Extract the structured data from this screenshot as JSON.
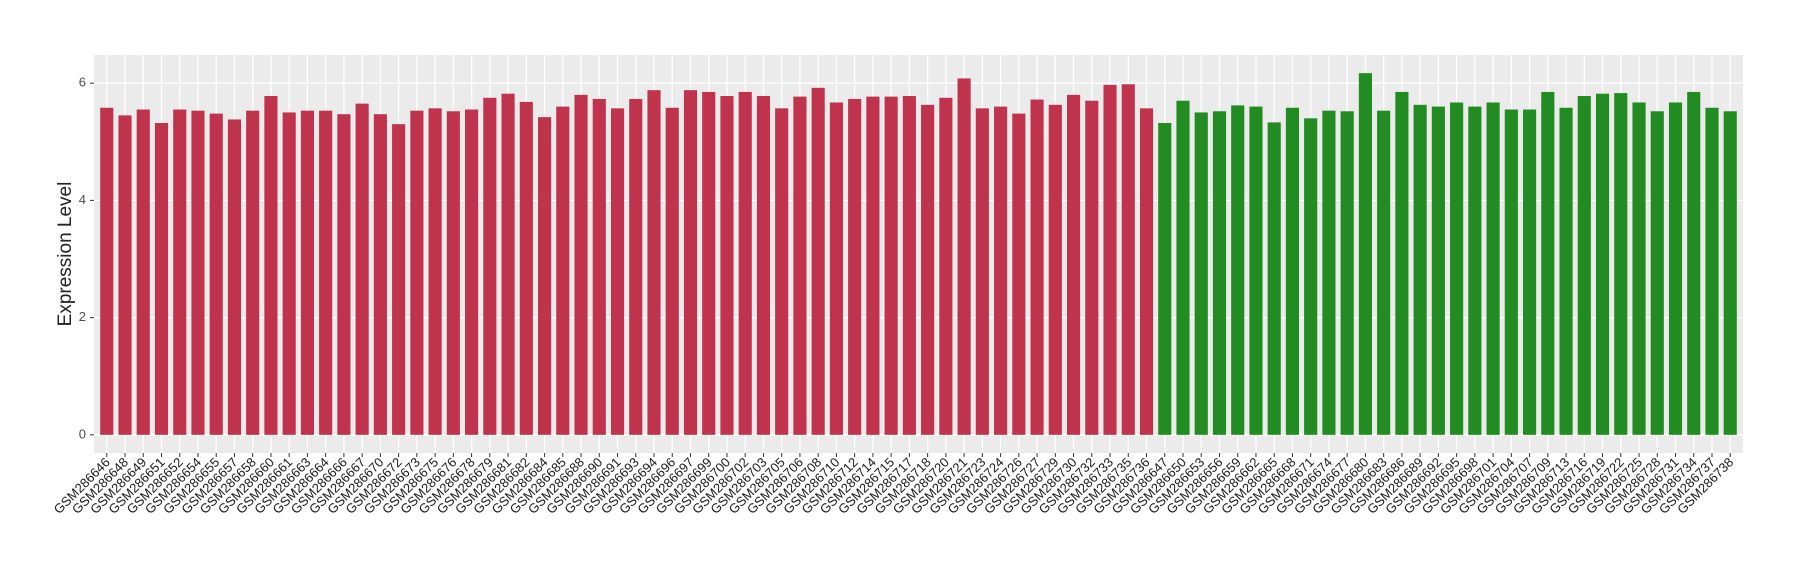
{
  "chart_data": {
    "type": "bar",
    "y_label": "Expression Level",
    "ylim": [
      -0.31,
      6.48
    ],
    "yticks": [
      0,
      2,
      4,
      6
    ],
    "grid": true,
    "series": [
      {
        "color": "#c0334d",
        "categories": [
          "GSM286646",
          "GSM286648",
          "GSM286649",
          "GSM286651",
          "GSM286652",
          "GSM286654",
          "GSM286655",
          "GSM286657",
          "GSM286658",
          "GSM286660",
          "GSM286661",
          "GSM286663",
          "GSM286664",
          "GSM286666",
          "GSM286667",
          "GSM286670",
          "GSM286672",
          "GSM286673",
          "GSM286675",
          "GSM286676",
          "GSM286678",
          "GSM286679",
          "GSM286681",
          "GSM286682",
          "GSM286684",
          "GSM286685",
          "GSM286688",
          "GSM286690",
          "GSM286691",
          "GSM286693",
          "GSM286694",
          "GSM286696",
          "GSM286697",
          "GSM286699",
          "GSM286700",
          "GSM286702",
          "GSM286703",
          "GSM286705",
          "GSM286706",
          "GSM286708",
          "GSM286710",
          "GSM286712",
          "GSM286714",
          "GSM286715",
          "GSM286717",
          "GSM286718",
          "GSM286720",
          "GSM286721",
          "GSM286723",
          "GSM286724",
          "GSM286726",
          "GSM286727",
          "GSM286729",
          "GSM286730",
          "GSM286732",
          "GSM286733",
          "GSM286735",
          "GSM286736"
        ],
        "values": [
          5.58,
          5.45,
          5.55,
          5.32,
          5.55,
          5.53,
          5.48,
          5.38,
          5.53,
          5.78,
          5.5,
          5.53,
          5.53,
          5.47,
          5.65,
          5.47,
          5.3,
          5.53,
          5.57,
          5.52,
          5.55,
          5.75,
          5.82,
          5.68,
          5.42,
          5.6,
          5.8,
          5.73,
          5.57,
          5.73,
          5.88,
          5.58,
          5.88,
          5.85,
          5.78,
          5.85,
          5.78,
          5.57,
          5.77,
          5.92,
          5.67,
          5.73,
          5.77,
          5.77,
          5.78,
          5.63,
          5.75,
          6.08,
          5.57,
          5.6,
          5.48,
          5.72,
          5.63,
          5.8,
          5.7,
          5.97,
          5.98,
          5.57
        ]
      },
      {
        "color": "#228b22",
        "categories": [
          "GSM286647",
          "GSM286650",
          "GSM286653",
          "GSM286656",
          "GSM286659",
          "GSM286662",
          "GSM286665",
          "GSM286668",
          "GSM286671",
          "GSM286674",
          "GSM286677",
          "GSM286680",
          "GSM286683",
          "GSM286686",
          "GSM286689",
          "GSM286692",
          "GSM286695",
          "GSM286698",
          "GSM286701",
          "GSM286704",
          "GSM286707",
          "GSM286709",
          "GSM286713",
          "GSM286716",
          "GSM286719",
          "GSM286722",
          "GSM286725",
          "GSM286728",
          "GSM286731",
          "GSM286734",
          "GSM286737",
          "GSM286738"
        ],
        "values": [
          5.32,
          5.7,
          5.5,
          5.52,
          5.62,
          5.6,
          5.33,
          5.58,
          5.4,
          5.53,
          5.52,
          6.17,
          5.53,
          5.85,
          5.63,
          5.6,
          5.67,
          5.6,
          5.67,
          5.55,
          5.55,
          5.85,
          5.58,
          5.78,
          5.82,
          5.83,
          5.67,
          5.52,
          5.67,
          5.85,
          5.58,
          5.52
        ]
      }
    ]
  }
}
